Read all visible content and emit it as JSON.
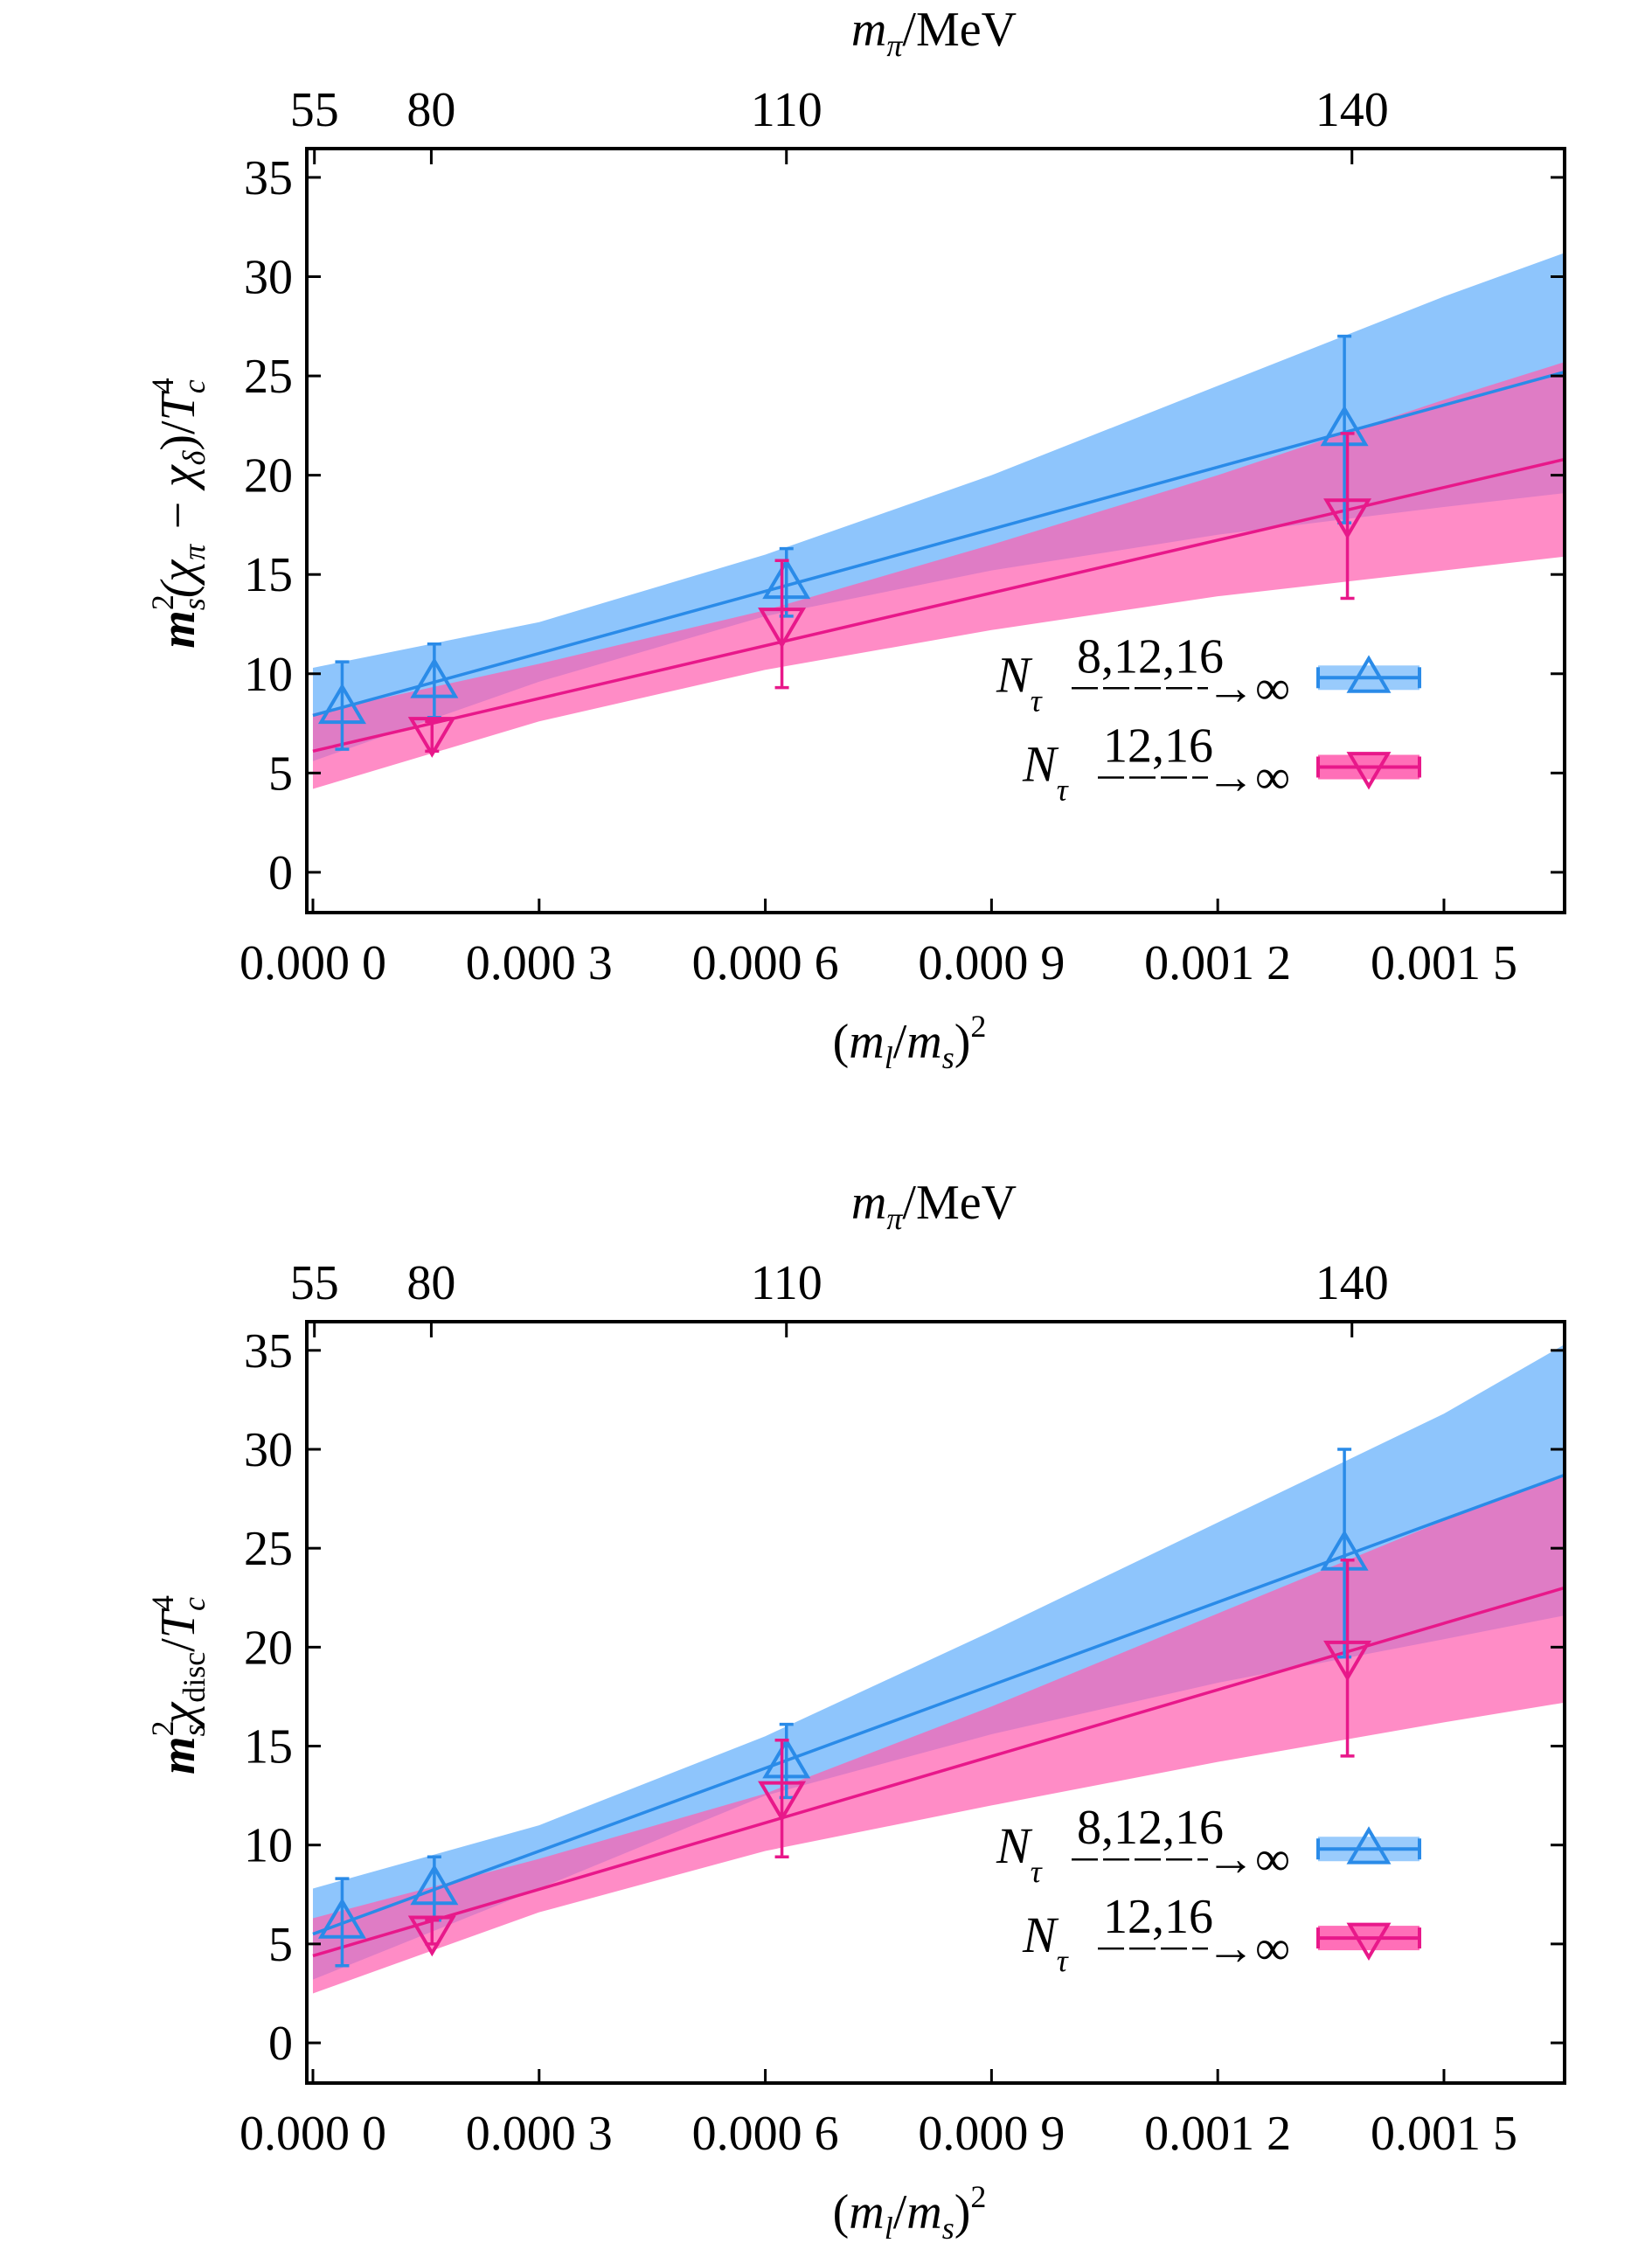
{
  "chart_data": [
    {
      "type": "line",
      "title": "",
      "xlabel": {
        "open": "(",
        "m1": "m",
        "sub1": "l",
        "slash": "/",
        "m2": "m",
        "sub2": "s",
        "close": ")",
        "sup": "2"
      },
      "ylabel": {
        "m": "m",
        "sup": "2",
        "sub": "s",
        "body": "(χ",
        "pi": "π",
        "minus": " − χ",
        "delta": "δ",
        "close": ")/",
        "T": "T",
        "Tsup": "4",
        "Tsub": "c"
      },
      "top_axis_label": {
        "m": "m",
        "sub": "π",
        "rest": "/MeV"
      },
      "xlim": [
        -8.1e-06,
        0.00166
      ],
      "ylim": [
        -2.03,
        36.45
      ],
      "xticks": [
        0,
        0.0003,
        0.0006,
        0.0009,
        0.0012,
        0.0015
      ],
      "xtick_labels": [
        "0.000 0",
        "0.000 3",
        "0.000 6",
        "0.000 9",
        "0.001 2",
        "0.001 5"
      ],
      "yticks": [
        0,
        5,
        10,
        15,
        20,
        25,
        30,
        35
      ],
      "ytick_labels": [
        "0",
        "5",
        "10",
        "15",
        "20",
        "25",
        "30",
        "35"
      ],
      "top_ticks": [
        2e-06,
        0.000157,
        0.000628,
        0.001378
      ],
      "top_tick_labels": [
        "55",
        "80",
        "110",
        "140"
      ],
      "legend_placement": "center-right",
      "series": [
        {
          "name": "N_tau 8,12,16 -> inf",
          "legend": {
            "N": "N",
            "tau": "τ",
            "over": "8,12,16",
            "arrow": "→∞"
          },
          "color": "#2a8be8",
          "band_color": "#8ec5fc",
          "marker": "triangle-up",
          "points": [
            {
              "x": 3.88e-05,
              "y": 8.3,
              "ylo": 6.2,
              "yhi": 10.6
            },
            {
              "x": 0.000161,
              "y": 9.6,
              "ylo": 7.8,
              "yhi": 11.5
            },
            {
              "x": 0.000628,
              "y": 14.6,
              "ylo": 12.9,
              "yhi": 16.3
            },
            {
              "x": 0.001368,
              "y": 22.3,
              "ylo": 17.6,
              "yhi": 27.0
            }
          ],
          "fit": {
            "x": [
              0,
              0.00166
            ],
            "y": [
              7.9,
              25.2
            ]
          },
          "band": {
            "x": [
              0,
              0.0003,
              0.0006,
              0.0009,
              0.0012,
              0.0015,
              0.00166
            ],
            "upper": [
              10.3,
              12.6,
              16.0,
              20.0,
              24.5,
              29.0,
              31.2
            ],
            "lower": [
              5.6,
              9.6,
              12.9,
              15.2,
              17.0,
              18.4,
              19.1
            ]
          }
        },
        {
          "name": "N_tau 12,16 -> inf",
          "legend": {
            "N": "N",
            "tau": "τ",
            "over": "12,16",
            "arrow": "→∞"
          },
          "color": "#e8188a",
          "band_color": "#ff5fb0",
          "marker": "triangle-down",
          "points": [
            {
              "x": 0.000158,
              "y": 7.0,
              "ylo": 6.1,
              "yhi": 7.6
            },
            {
              "x": 0.000622,
              "y": 12.5,
              "ylo": 9.3,
              "yhi": 15.7
            },
            {
              "x": 0.001372,
              "y": 18.0,
              "ylo": 13.8,
              "yhi": 22.1
            }
          ],
          "fit": {
            "x": [
              0,
              0.00166
            ],
            "y": [
              6.1,
              20.8
            ]
          },
          "band": {
            "x": [
              0,
              0.0003,
              0.0006,
              0.0009,
              0.0012,
              0.0015,
              0.00166
            ],
            "upper": [
              8.0,
              10.5,
              13.2,
              16.5,
              20.0,
              23.8,
              25.7
            ],
            "lower": [
              4.2,
              7.6,
              10.2,
              12.2,
              13.9,
              15.2,
              15.9
            ]
          }
        }
      ]
    },
    {
      "type": "line",
      "title": "",
      "xlabel": {
        "open": "(",
        "m1": "m",
        "sub1": "l",
        "slash": "/",
        "m2": "m",
        "sub2": "s",
        "close": ")",
        "sup": "2"
      },
      "ylabel": {
        "m": "m",
        "sup": "2",
        "sub": "s",
        "body": "χ",
        "pi": "disc",
        "minus": "",
        "delta": "",
        "close": "/",
        "T": "T",
        "Tsup": "4",
        "Tsub": "c"
      },
      "top_axis_label": {
        "m": "m",
        "sub": "π",
        "rest": "/MeV"
      },
      "xlim": [
        -8.1e-06,
        0.00166
      ],
      "ylim": [
        -2.03,
        36.45
      ],
      "xticks": [
        0,
        0.0003,
        0.0006,
        0.0009,
        0.0012,
        0.0015
      ],
      "xtick_labels": [
        "0.000 0",
        "0.000 3",
        "0.000 6",
        "0.000 9",
        "0.001 2",
        "0.001 5"
      ],
      "yticks": [
        0,
        5,
        10,
        15,
        20,
        25,
        30,
        35
      ],
      "ytick_labels": [
        "0",
        "5",
        "10",
        "15",
        "20",
        "25",
        "30",
        "35"
      ],
      "top_ticks": [
        2e-06,
        0.000157,
        0.000628,
        0.001378
      ],
      "top_tick_labels": [
        "55",
        "80",
        "110",
        "140"
      ],
      "legend_placement": "center-right",
      "series": [
        {
          "name": "N_tau 8,12,16 -> inf",
          "legend": {
            "N": "N",
            "tau": "τ",
            "over": "8,12,16",
            "arrow": "→∞"
          },
          "color": "#2a8be8",
          "band_color": "#8ec5fc",
          "marker": "triangle-up",
          "points": [
            {
              "x": 3.88e-05,
              "y": 6.1,
              "ylo": 3.9,
              "yhi": 8.3
            },
            {
              "x": 0.000161,
              "y": 7.8,
              "ylo": 6.2,
              "yhi": 9.4
            },
            {
              "x": 0.000628,
              "y": 14.2,
              "ylo": 12.4,
              "yhi": 16.1
            },
            {
              "x": 0.001368,
              "y": 24.7,
              "ylo": 19.5,
              "yhi": 30.0
            }
          ],
          "fit": {
            "x": [
              0,
              0.00166
            ],
            "y": [
              5.5,
              28.7
            ]
          },
          "band": {
            "x": [
              0,
              0.0003,
              0.0006,
              0.0009,
              0.0012,
              0.0015,
              0.00166
            ],
            "upper": [
              7.8,
              11.0,
              15.5,
              20.8,
              26.3,
              31.8,
              35.3
            ],
            "lower": [
              3.2,
              7.8,
              12.5,
              15.6,
              18.2,
              20.4,
              21.6
            ]
          }
        },
        {
          "name": "N_tau 12,16 -> inf",
          "legend": {
            "N": "N",
            "tau": "τ",
            "over": "12,16",
            "arrow": "→∞"
          },
          "color": "#e8188a",
          "band_color": "#ff5fb0",
          "marker": "triangle-down",
          "points": [
            {
              "x": 0.000158,
              "y": 5.6,
              "ylo": 5.0,
              "yhi": 6.2
            },
            {
              "x": 0.000622,
              "y": 12.4,
              "ylo": 9.4,
              "yhi": 15.3
            },
            {
              "x": 0.001372,
              "y": 19.5,
              "ylo": 14.5,
              "yhi": 24.4
            }
          ],
          "fit": {
            "x": [
              0,
              0.00166
            ],
            "y": [
              4.4,
              23.0
            ]
          },
          "band": {
            "x": [
              0,
              0.0003,
              0.0006,
              0.0009,
              0.0012,
              0.0015,
              0.00166
            ],
            "upper": [
              6.3,
              9.3,
              12.6,
              17.0,
              21.7,
              26.4,
              28.7
            ],
            "lower": [
              2.5,
              6.6,
              9.7,
              12.0,
              14.2,
              16.2,
              17.2
            ]
          }
        }
      ]
    }
  ]
}
